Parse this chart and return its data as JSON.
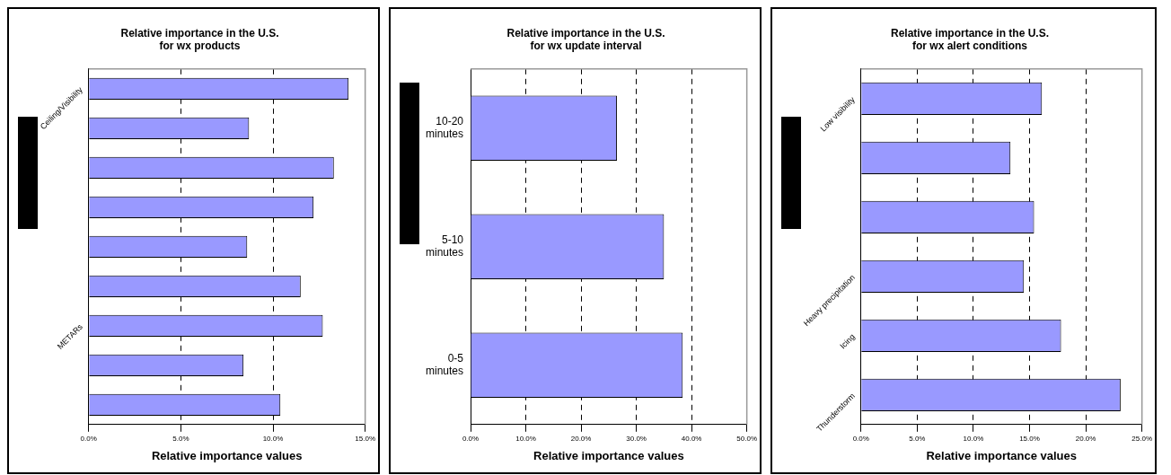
{
  "chart_data": [
    {
      "type": "bar",
      "orientation": "horizontal",
      "title": "Relative importance in the U.S.\nfor wx products",
      "xlabel": "Relative importance values",
      "categories": [
        "Ceiling/Visibility",
        null,
        null,
        null,
        null,
        null,
        "METARs",
        null,
        null
      ],
      "values": [
        14.1,
        8.7,
        13.3,
        12.2,
        8.6,
        11.5,
        12.7,
        8.4,
        10.4
      ],
      "color": "#9999ff",
      "xlim": [
        0,
        15
      ],
      "xticks": [
        {
          "value": 0,
          "label": "0.0%"
        },
        {
          "value": 5,
          "label": "5.0%"
        },
        {
          "value": 10,
          "label": "10.0%"
        },
        {
          "value": 15,
          "label": "15.0%"
        }
      ],
      "grid": "x",
      "legend": false
    },
    {
      "type": "bar",
      "orientation": "horizontal",
      "title": "Relative importance in the U.S.\nfor wx update interval",
      "xlabel": "Relative importance values",
      "categories": [
        "10-20\nminutes",
        "5-10\nminutes",
        "0-5\nminutes"
      ],
      "values": [
        26.5,
        35.0,
        38.4
      ],
      "color": "#9999ff",
      "xlim": [
        0,
        50
      ],
      "xticks": [
        {
          "value": 0,
          "label": "0.0%"
        },
        {
          "value": 10,
          "label": "10.0%"
        },
        {
          "value": 20,
          "label": "20.0%"
        },
        {
          "value": 30,
          "label": "30.0%"
        },
        {
          "value": 40,
          "label": "40.0%"
        },
        {
          "value": 50,
          "label": "50.0%"
        }
      ],
      "grid": "x",
      "legend": false
    },
    {
      "type": "bar",
      "orientation": "horizontal",
      "title": "Relative importance in the U.S.\nfor wx alert conditions",
      "xlabel": "Relative importance values",
      "categories": [
        "Low visibility",
        null,
        null,
        "Heavy precipitation",
        "Icing",
        "Thunderstorm"
      ],
      "values": [
        16.1,
        13.3,
        15.4,
        14.5,
        17.8,
        23.1
      ],
      "color": "#9999ff",
      "xlim": [
        0,
        25
      ],
      "xticks": [
        {
          "value": 0,
          "label": "0.0%"
        },
        {
          "value": 5,
          "label": "5.0%"
        },
        {
          "value": 10,
          "label": "10.0%"
        },
        {
          "value": 15,
          "label": "15.0%"
        },
        {
          "value": 20,
          "label": "20.0%"
        },
        {
          "value": 25,
          "label": "25.0%"
        }
      ],
      "grid": "x",
      "legend": false
    }
  ]
}
